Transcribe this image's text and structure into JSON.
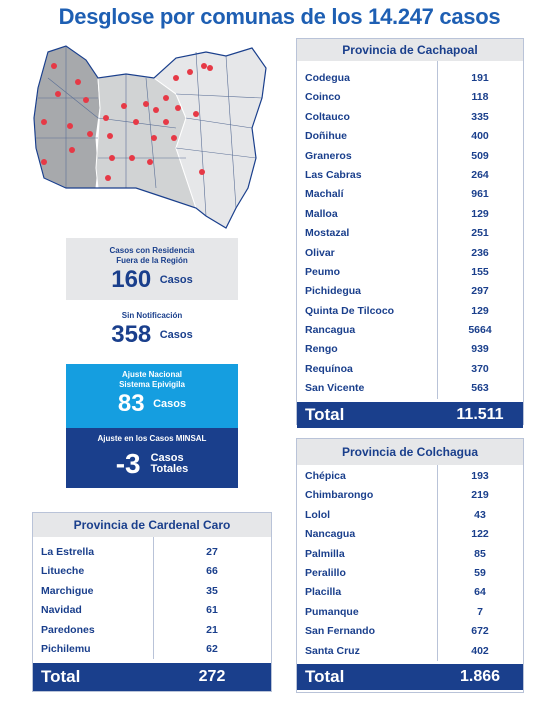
{
  "title": "Desglose por comunas de los 14.247 casos",
  "colors": {
    "navy": "#1a3f8c",
    "blue": "#1e5fb3",
    "cyan": "#159ee0",
    "grey": "#e6e7e9",
    "pin": "#e63946"
  },
  "icons": {
    "map": "region-map-icon",
    "pin": "location-pin-icon"
  },
  "stats": {
    "residencia": {
      "label1": "Casos con Residencia",
      "label2": "Fuera de la Región",
      "value": "160",
      "unit": "Casos"
    },
    "sin_notificacion": {
      "label": "Sin Notificación",
      "value": "358",
      "unit": "Casos"
    },
    "ajuste_nacional": {
      "label1": "Ajuste Nacional",
      "label2": "Sistema Epivigila",
      "value": "83",
      "unit": "Casos"
    },
    "ajuste_minsal": {
      "label": "Ajuste en los Casos MINSAL",
      "value": "-3",
      "unit1": "Casos",
      "unit2": "Totales"
    }
  },
  "cachapoal": {
    "title": "Provincia de Cachapoal",
    "rows": [
      {
        "name": "Codegua",
        "value": "191"
      },
      {
        "name": "Coinco",
        "value": "118"
      },
      {
        "name": "Coltauco",
        "value": "335"
      },
      {
        "name": "Doñihue",
        "value": "400"
      },
      {
        "name": "Graneros",
        "value": "509"
      },
      {
        "name": "Las Cabras",
        "value": "264"
      },
      {
        "name": "Machalí",
        "value": "961"
      },
      {
        "name": "Malloa",
        "value": "129"
      },
      {
        "name": "Mostazal",
        "value": "251"
      },
      {
        "name": "Olivar",
        "value": "236"
      },
      {
        "name": "Peumo",
        "value": "155"
      },
      {
        "name": "Pichidegua",
        "value": "297"
      },
      {
        "name": "Quinta De Tilcoco",
        "value": "129"
      },
      {
        "name": "Rancagua",
        "value": "5664"
      },
      {
        "name": "Rengo",
        "value": "939"
      },
      {
        "name": "Requínoa",
        "value": "370"
      },
      {
        "name": "San Vicente",
        "value": "563"
      }
    ],
    "total_label": "Total",
    "total_value": "11.511"
  },
  "colchagua": {
    "title": "Provincia de Colchagua",
    "rows": [
      {
        "name": "Chépica",
        "value": "193"
      },
      {
        "name": "Chimbarongo",
        "value": "219"
      },
      {
        "name": "Lolol",
        "value": "43"
      },
      {
        "name": "Nancagua",
        "value": "122"
      },
      {
        "name": "Palmilla",
        "value": "85"
      },
      {
        "name": "Peralillo",
        "value": "59"
      },
      {
        "name": "Placilla",
        "value": "64"
      },
      {
        "name": "Pumanque",
        "value": "7"
      },
      {
        "name": "San Fernando",
        "value": "672"
      },
      {
        "name": "Santa Cruz",
        "value": "402"
      }
    ],
    "total_label": "Total",
    "total_value": "1.866"
  },
  "cardenal_caro": {
    "title": "Provincia de Cardenal Caro",
    "rows": [
      {
        "name": "La Estrella",
        "value": "27"
      },
      {
        "name": "Litueche",
        "value": "66"
      },
      {
        "name": "Marchigue",
        "value": "35"
      },
      {
        "name": "Navidad",
        "value": "61"
      },
      {
        "name": "Paredones",
        "value": "21"
      },
      {
        "name": "Pichilemu",
        "value": "62"
      }
    ],
    "total_label": "Total",
    "total_value": "272"
  }
}
